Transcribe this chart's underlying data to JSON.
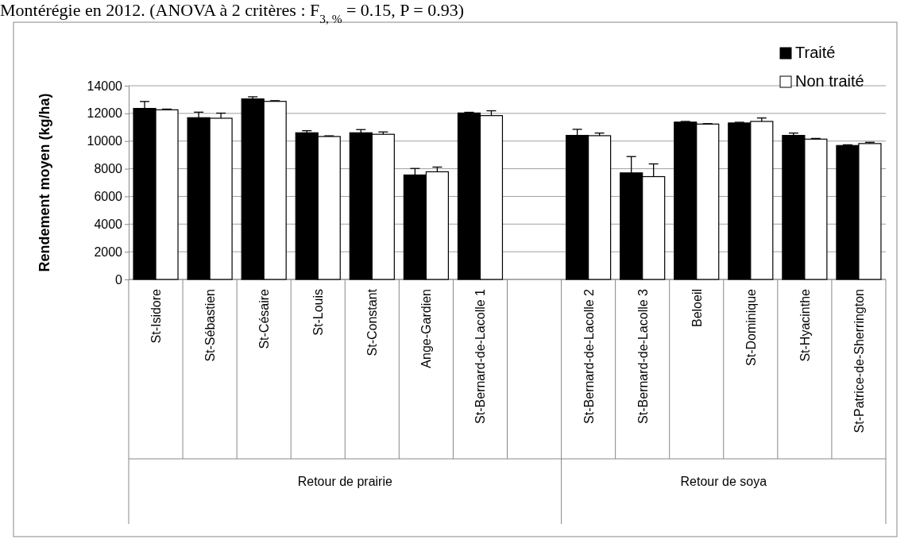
{
  "chart_data": {
    "type": "bar",
    "title": "Montérégie en 2012. (ANOVA à 2 critères : F$_{3, %}$ = 0.15, P = 0.93)",
    "ylabel": "Rendement moyen (kg/ha)",
    "categories": [
      "St-Isidore",
      "St-Sébastien",
      "St-Césaire",
      "St-Louis",
      "St-Constant",
      "Ange-Gardien",
      "St-Bernard-de-Lacolle 1",
      null,
      "St-Bernard-de-Lacolle 2",
      "St-Bernard-de-Lacolle 3",
      "Beloeil",
      "St-Dominique",
      "St-Hyacinthe",
      "St-Patrice-de-Sherrington"
    ],
    "series": [
      {
        "name": "Traité",
        "color": "#000000",
        "values": [
          12360,
          11690,
          13050,
          10600,
          10600,
          7550,
          12030,
          null,
          10410,
          7700,
          11370,
          11310,
          10410,
          9680
        ],
        "errors": [
          [
            12360,
            12860
          ],
          [
            11690,
            12090
          ],
          [
            13050,
            13200
          ],
          [
            10600,
            10750
          ],
          [
            10600,
            10830
          ],
          [
            7550,
            8020
          ],
          [
            12030,
            12080
          ],
          null,
          [
            10410,
            10850
          ],
          [
            7700,
            8880
          ],
          [
            11370,
            11420
          ],
          [
            11310,
            11360
          ],
          [
            10410,
            10580
          ],
          [
            9680,
            9730
          ]
        ]
      },
      {
        "name": "Non traité",
        "color": "#ffffff",
        "values": [
          12260,
          11650,
          12870,
          10330,
          10490,
          7780,
          11840,
          null,
          10390,
          7430,
          11230,
          11420,
          10140,
          9820
        ],
        "errors": [
          [
            12260,
            12310
          ],
          [
            11650,
            12020
          ],
          [
            12870,
            12920
          ],
          [
            10330,
            10380
          ],
          [
            10490,
            10660
          ],
          [
            7780,
            8120
          ],
          [
            11840,
            12190
          ],
          null,
          [
            10390,
            10580
          ],
          [
            7430,
            8350
          ],
          [
            11230,
            11260
          ],
          [
            11420,
            11670
          ],
          [
            10140,
            10190
          ],
          [
            9820,
            9910
          ]
        ]
      }
    ],
    "annotations": [
      "Retour de prairie",
      "Retour de soya"
    ],
    "ylim": [
      0,
      14000
    ],
    "yticks": [
      0,
      2000,
      4000,
      6000,
      8000,
      10000,
      12000,
      14000
    ],
    "grid": "y",
    "legend": "top right"
  }
}
